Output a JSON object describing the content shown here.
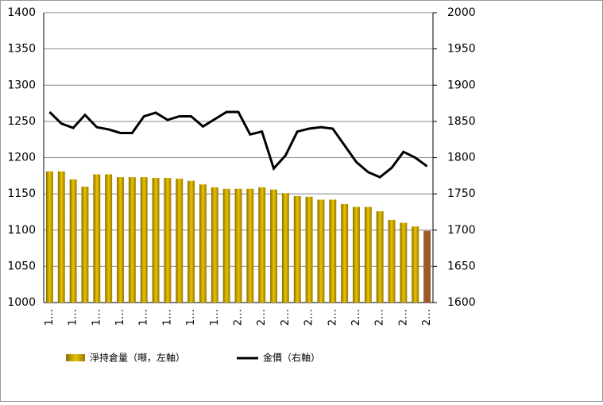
{
  "chart_data": {
    "type": "bar_line",
    "categories": [
      "1…",
      null,
      "1…",
      null,
      "1…",
      null,
      "1…",
      null,
      "1…",
      null,
      "1…",
      null,
      "1…",
      null,
      "1…",
      null,
      "2…",
      null,
      "2…",
      null,
      "2…",
      null,
      "2…",
      null,
      "2…",
      null,
      "2…",
      null,
      "2…",
      null,
      "2…",
      null,
      "2…"
    ],
    "series": [
      {
        "name": "淨持倉量（噸，左軸）",
        "color": "#c9a400",
        "colors": [
          "#c9a400",
          "#c9a400",
          "#c9a400",
          "#c9a400",
          "#c9a400",
          "#c9a400",
          "#c9a400",
          "#c9a400",
          "#c9a400",
          "#c9a400",
          "#c9a400",
          "#c9a400",
          "#c9a400",
          "#c9a400",
          "#c9a400",
          "#c9a400",
          "#c9a400",
          "#c9a400",
          "#c9a400",
          "#c9a400",
          "#c9a400",
          "#c9a400",
          "#c9a400",
          "#c9a400",
          "#c9a400",
          "#c9a400",
          "#c9a400",
          "#c9a400",
          "#c9a400",
          "#c9a400",
          "#c9a400",
          "#c9a400",
          "#9c5a2a"
        ],
        "values": [
          1181,
          1181,
          1170,
          1160,
          1177,
          1177,
          1173,
          1173,
          1173,
          1172,
          1172,
          1171,
          1168,
          1163,
          1159,
          1157,
          1157,
          1157,
          1159,
          1156,
          1151,
          1147,
          1146,
          1142,
          1142,
          1136,
          1132,
          1132,
          1126,
          1114,
          1110,
          1105,
          1099
        ]
      },
      {
        "name": "金價（右軸）",
        "color": "#000000",
        "axis": "y2",
        "values": [
          1863,
          1847,
          1841,
          1859,
          1842,
          1839,
          1834,
          1834,
          1857,
          1862,
          1852,
          1857,
          1857,
          1843,
          1853,
          1863,
          1863,
          1832,
          1836,
          1785,
          1803,
          1836,
          1840,
          1842,
          1840,
          1817,
          1794,
          1780,
          1773,
          1786,
          1808,
          1800,
          1788
        ]
      }
    ],
    "ylim": [
      1000,
      1400
    ],
    "yticks": [
      1000,
      1050,
      1100,
      1150,
      1200,
      1250,
      1300,
      1350,
      1400
    ],
    "y2lim": [
      1600,
      2000
    ],
    "y2ticks": [
      1600,
      1650,
      1700,
      1750,
      1800,
      1850,
      1900,
      1950,
      2000
    ],
    "grid": true
  }
}
